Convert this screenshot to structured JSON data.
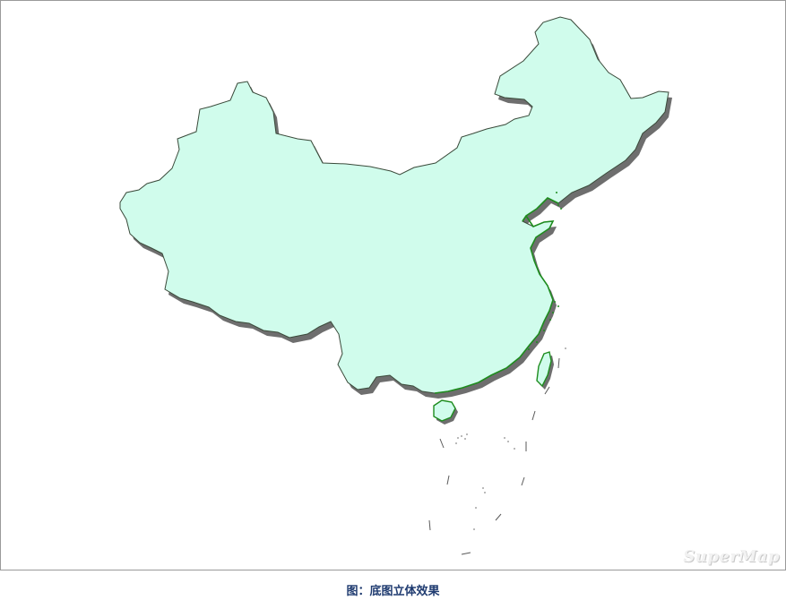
{
  "map": {
    "land_fill": "#d0fcec",
    "border_stroke": "#3a4a3a",
    "coast_stroke": "#1e8c1e",
    "shadow_color": "#6e6e6e"
  },
  "watermark": {
    "text": "SuperMap"
  },
  "caption": {
    "text": "图：底图立体效果"
  }
}
